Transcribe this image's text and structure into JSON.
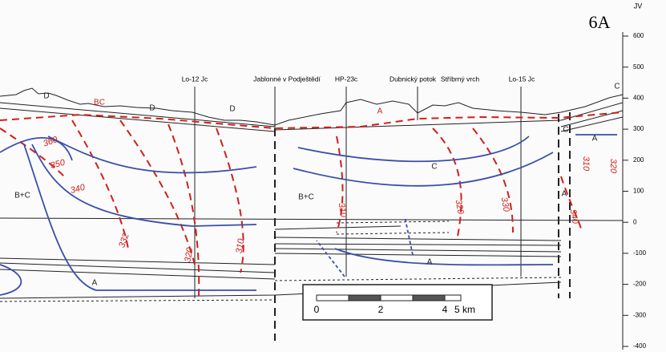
{
  "sheet": "6A",
  "direction": "JV",
  "elevation_axis": {
    "ticks": [
      600,
      500,
      400,
      300,
      200,
      100,
      0,
      -100,
      -200,
      -300,
      -400
    ]
  },
  "localities": [
    "Lo-12 Jc",
    "Jablonné v Podještědí",
    "HP-23c",
    "Dubnický potok",
    "Stříbrný vrch",
    "Lo-15 Jc"
  ],
  "units": [
    "D",
    "D",
    "D",
    "BC",
    "A",
    "C",
    "C",
    "A",
    "B+C",
    "B+C",
    "C",
    "A",
    "A",
    "A"
  ],
  "isolines": [
    360,
    350,
    340,
    332,
    320,
    310,
    310,
    320,
    330,
    340,
    310,
    320
  ],
  "scale_bar": {
    "ticks": [
      0,
      2,
      4
    ],
    "end": "5 km"
  }
}
